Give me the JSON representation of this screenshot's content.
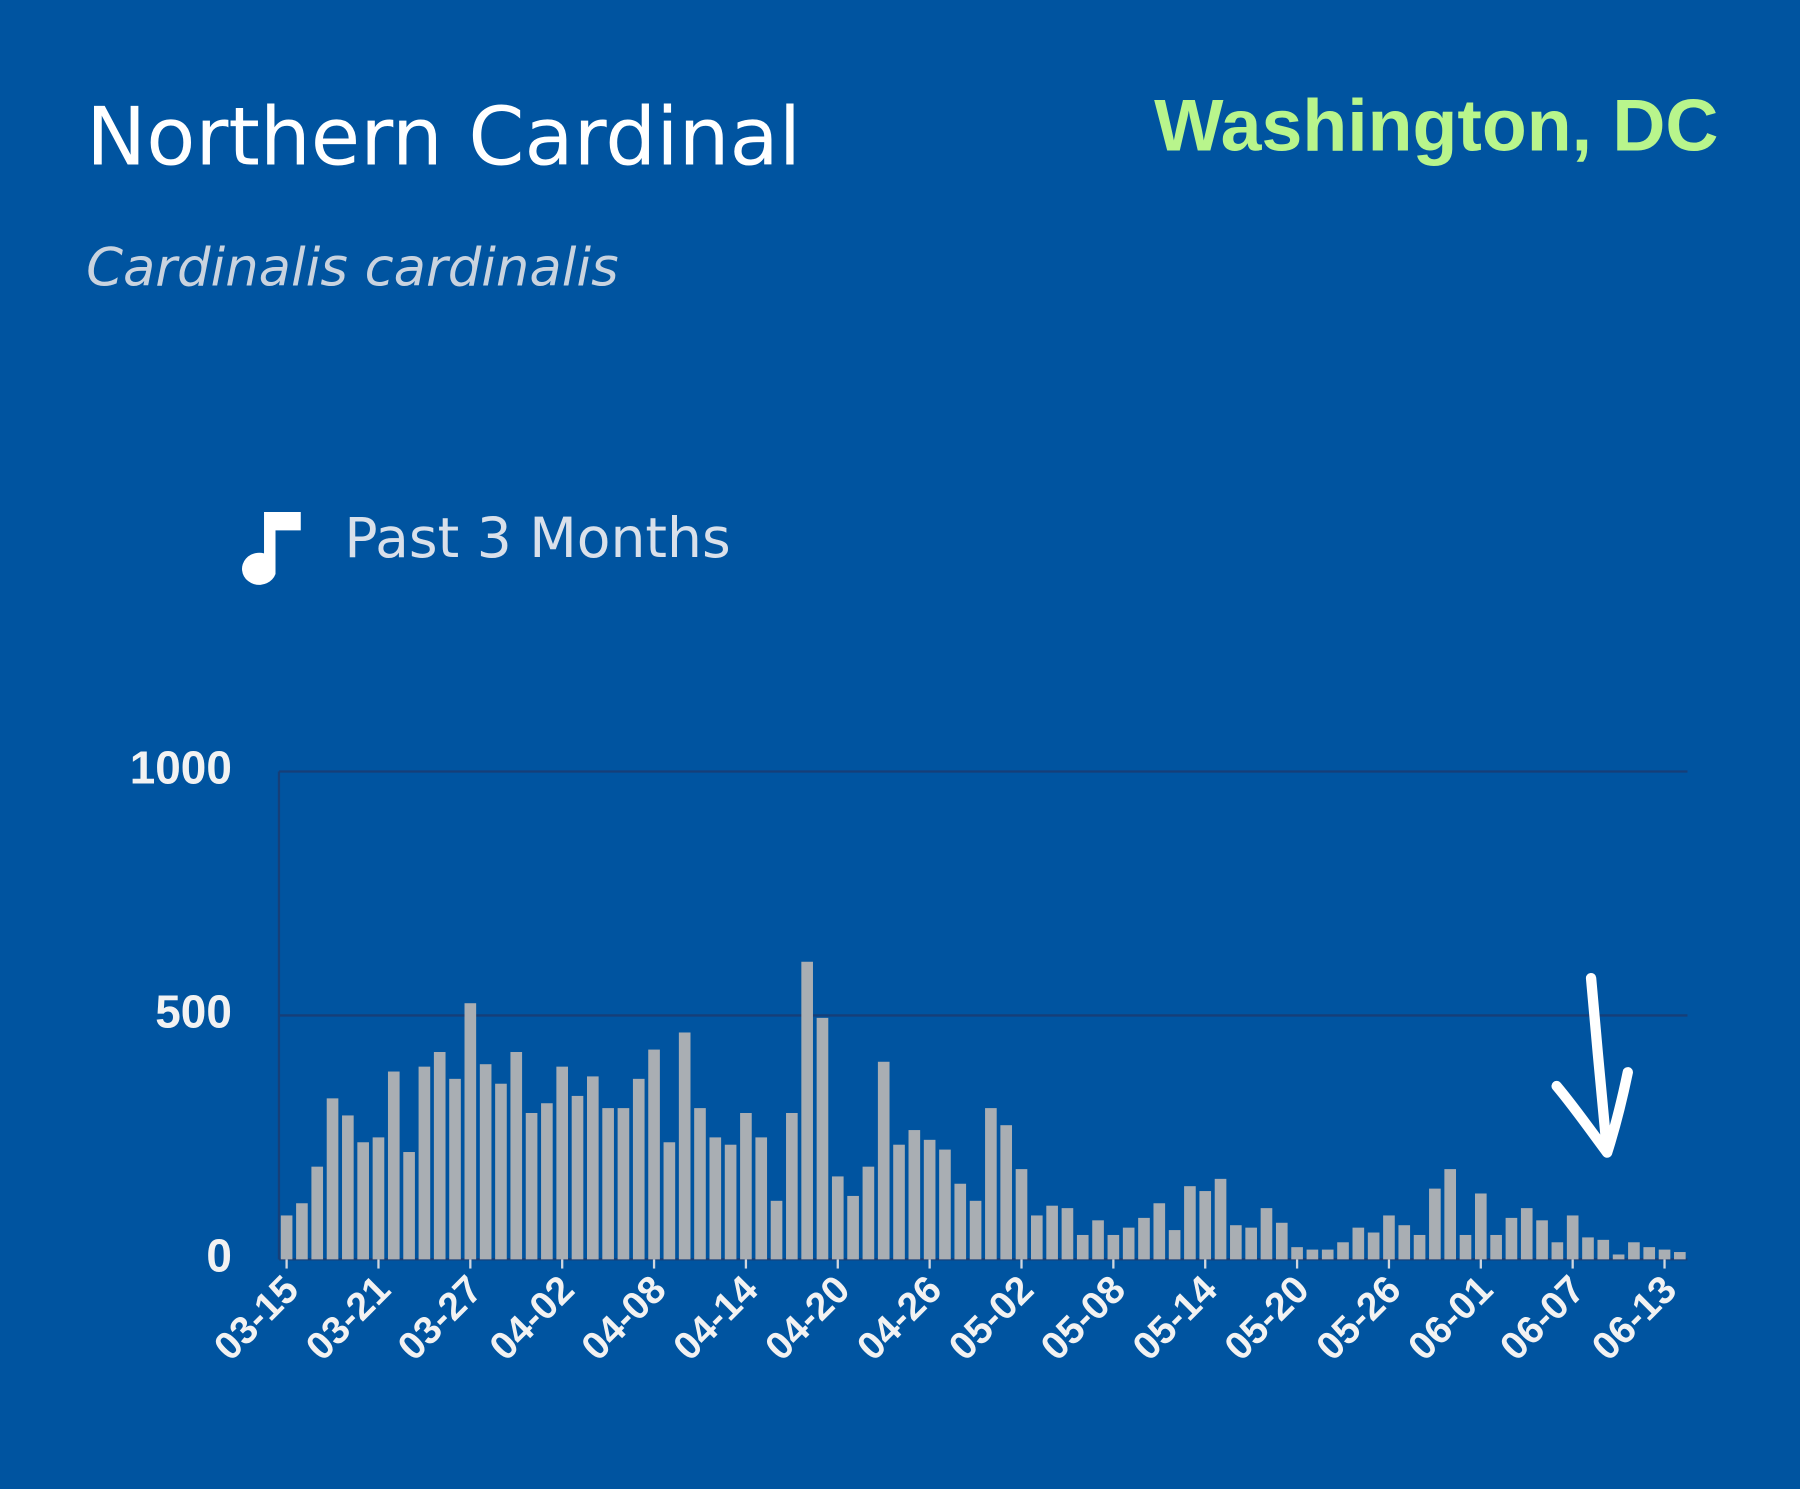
{
  "chart_data": {
    "type": "bar",
    "title": "Northern Cardinal",
    "subtitle": "Cardinalis cardinalis",
    "location": "Washington, DC",
    "period": "Past 3 Months",
    "categories": [
      "03-15",
      null,
      null,
      null,
      null,
      null,
      "03-21",
      null,
      null,
      null,
      null,
      null,
      "03-27",
      null,
      null,
      null,
      null,
      null,
      "04-02",
      null,
      null,
      null,
      null,
      null,
      "04-08",
      null,
      null,
      null,
      null,
      null,
      "04-14",
      null,
      null,
      null,
      null,
      null,
      "04-20",
      null,
      null,
      null,
      null,
      null,
      "04-26",
      null,
      null,
      null,
      null,
      null,
      "05-02",
      null,
      null,
      null,
      null,
      null,
      "05-08",
      null,
      null,
      null,
      null,
      null,
      "05-14",
      null,
      null,
      null,
      null,
      null,
      "05-20",
      null,
      null,
      null,
      null,
      null,
      "05-26",
      null,
      null,
      null,
      null,
      null,
      "06-01",
      null,
      null,
      null,
      null,
      null,
      "06-07",
      null,
      null,
      null,
      null,
      null,
      "06-13",
      null
    ],
    "values": [
      90,
      115,
      190,
      330,
      295,
      240,
      250,
      385,
      220,
      395,
      425,
      370,
      525,
      400,
      360,
      425,
      300,
      320,
      395,
      335,
      375,
      310,
      310,
      370,
      430,
      240,
      465,
      310,
      250,
      235,
      300,
      250,
      120,
      300,
      610,
      495,
      170,
      130,
      190,
      405,
      235,
      265,
      245,
      225,
      155,
      120,
      310,
      275,
      185,
      90,
      110,
      105,
      50,
      80,
      50,
      65,
      85,
      115,
      60,
      150,
      140,
      165,
      70,
      65,
      105,
      75,
      25,
      20,
      20,
      35,
      65,
      55,
      90,
      70,
      50,
      145,
      185,
      50,
      135,
      50,
      85,
      105,
      80,
      35,
      90,
      45,
      40,
      10,
      35,
      25,
      20,
      15
    ],
    "color": "#a9aeb3",
    "ylim": [
      0,
      1000
    ],
    "yticks": [
      0,
      500,
      1000
    ],
    "grid": true
  }
}
